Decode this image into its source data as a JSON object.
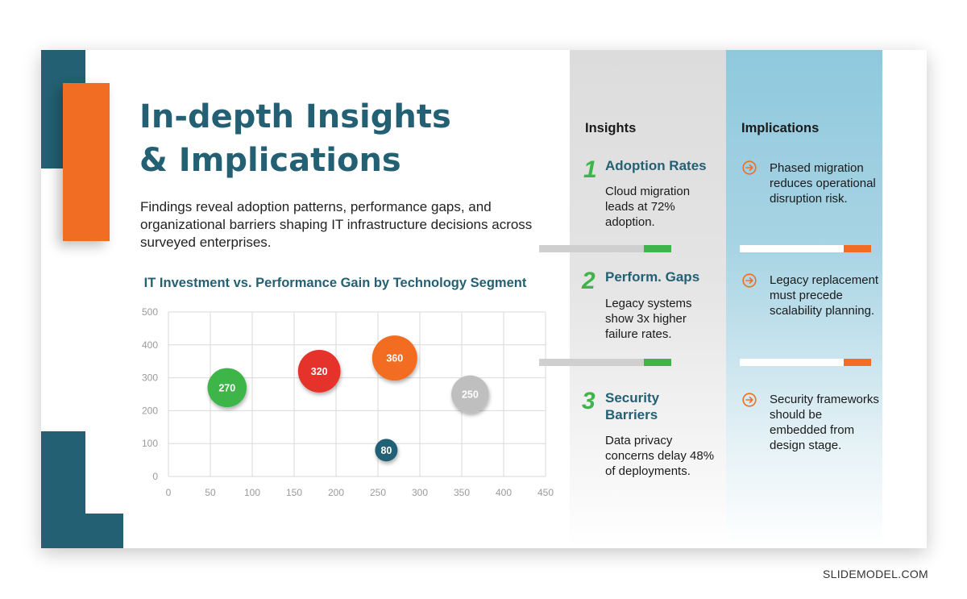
{
  "title_lines": [
    "In-depth Insights",
    "& Implications"
  ],
  "subtitle": "Findings reveal adoption patterns, performance gaps, and organizational barriers shaping IT infrastructure decisions across surveyed enterprises.",
  "chart_title": "IT Investment vs. Performance Gain by Technology Segment",
  "chart_data": {
    "type": "scatter",
    "title": "IT Investment vs. Performance Gain by Technology Segment",
    "xlabel": "",
    "ylabel": "",
    "xlim": [
      0,
      450
    ],
    "ylim": [
      0,
      500
    ],
    "x_ticks": [
      0,
      50,
      100,
      150,
      200,
      250,
      300,
      350,
      400,
      450
    ],
    "y_ticks": [
      0,
      100,
      200,
      300,
      400,
      500
    ],
    "grid": true,
    "points": [
      {
        "x": 70,
        "y": 270,
        "size": 270,
        "label": "270",
        "color": "#3db54a"
      },
      {
        "x": 180,
        "y": 320,
        "size": 320,
        "label": "320",
        "color": "#e5302a"
      },
      {
        "x": 270,
        "y": 360,
        "size": 360,
        "label": "360",
        "color": "#f26d24"
      },
      {
        "x": 360,
        "y": 250,
        "size": 250,
        "label": "250",
        "color": "#bfbfbf"
      },
      {
        "x": 260,
        "y": 80,
        "size": 80,
        "label": "80",
        "color": "#236074"
      }
    ]
  },
  "insights": {
    "header": "Insights",
    "items": [
      {
        "number": "1",
        "title": "Adoption Rates",
        "body": "Cloud migration leads at 72% adoption."
      },
      {
        "number": "2",
        "title": "Perform. Gaps",
        "body": "Legacy systems show 3x higher failure rates."
      },
      {
        "number": "3",
        "title": "Security Barriers",
        "body": "Data privacy concerns delay 48% of deployments."
      }
    ]
  },
  "implications": {
    "header": "Implications",
    "items": [
      {
        "body": "Phased migration reduces operational disruption risk."
      },
      {
        "body": "Legacy replacement must precede scalability planning."
      },
      {
        "body": "Security frameworks should be embedded from design stage."
      }
    ]
  },
  "brand": "SLIDEMODEL.COM",
  "colors": {
    "teal": "#236074",
    "orange": "#f26d24",
    "green": "#3db54a",
    "red": "#e5302a",
    "gray": "#bfbfbf"
  },
  "icons": {
    "implication_marker": "arrow-right-circle-icon"
  }
}
